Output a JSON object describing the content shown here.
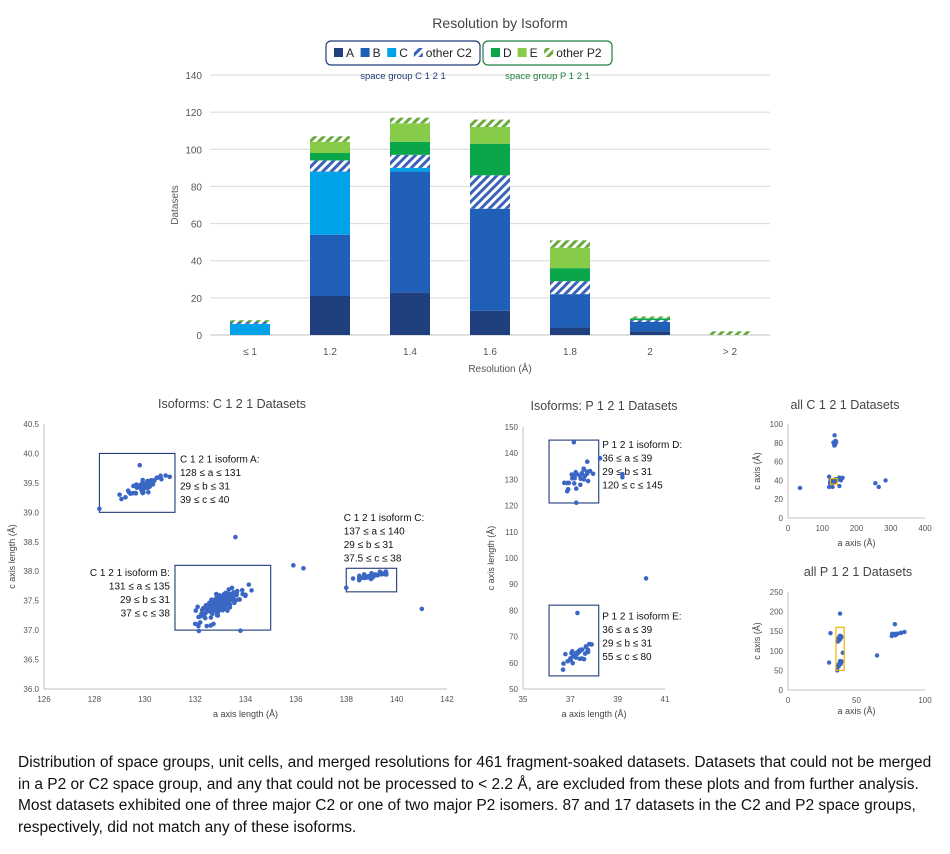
{
  "caption": "Distribution of space groups, unit cells, and merged resolutions for 461 fragment-soaked datasets. Datasets that could not be merged in a P2 or C2 space group, and any that could not be processed to < 2.2 Å, are excluded from these plots and from further analysis. Most datasets exhibited one of three major C2 or one of two major P2 isomers. 87 and 17 datasets in the C2 and P2 space groups, respectively, did not match any of these isoforms.",
  "colors": {
    "A": "#203f7f",
    "B": "#1f5fb8",
    "C": "#00a2e8",
    "otherC2": "#3a63b8",
    "D": "#0aa64a",
    "E": "#86cc48",
    "otherP2": "#6aaa3c",
    "point": "#3a66c4",
    "boxC2": "#1f3a78",
    "boxP2": "#208040",
    "highlight": "#f0b400",
    "grid": "#d9d9d9",
    "axis": "#bfbfbf"
  },
  "chart_data": [
    {
      "id": "histogram",
      "type": "bar",
      "stacked": true,
      "title": "Resolution by Isoform",
      "xlabel": "Resolution (Å)",
      "ylabel": "Datasets",
      "ylim": [
        0,
        140
      ],
      "yticks": [
        0,
        20,
        40,
        60,
        80,
        100,
        120,
        140
      ],
      "categories": [
        "≤ 1",
        "1.2",
        "1.4",
        "1.6",
        "1.8",
        "2",
        "> 2"
      ],
      "series": [
        {
          "key": "A",
          "name": "A",
          "pattern": false,
          "values": [
            0,
            21,
            23,
            13,
            4,
            2,
            0
          ]
        },
        {
          "key": "B",
          "name": "B",
          "pattern": false,
          "values": [
            0,
            33,
            65,
            55,
            18,
            5,
            0
          ]
        },
        {
          "key": "C",
          "name": "C",
          "pattern": false,
          "values": [
            6,
            34,
            2,
            0,
            0,
            0,
            0
          ]
        },
        {
          "key": "otherC2",
          "name": "other C2",
          "pattern": true,
          "values": [
            1,
            6,
            7,
            18,
            7,
            1,
            0
          ]
        },
        {
          "key": "D",
          "name": "D",
          "pattern": false,
          "values": [
            0,
            4,
            7,
            17,
            7,
            1,
            0
          ]
        },
        {
          "key": "E",
          "name": "E",
          "pattern": false,
          "values": [
            0,
            6,
            10,
            9,
            11,
            0,
            0
          ]
        },
        {
          "key": "otherP2",
          "name": "other P2",
          "pattern": true,
          "values": [
            1,
            3,
            3,
            4,
            4,
            1,
            2
          ]
        }
      ],
      "legend": {
        "placement": "top",
        "groups": [
          {
            "label": "space group C 1 2 1",
            "keys": [
              "A",
              "B",
              "C",
              "otherC2"
            ]
          },
          {
            "label": "space group P 1 2 1",
            "keys": [
              "D",
              "E",
              "otherP2"
            ]
          }
        ]
      }
    },
    {
      "id": "scatterC2",
      "type": "scatter",
      "title": "Isoforms: C 1 2 1 Datasets",
      "xlabel": "a axis length (Å)",
      "ylabel": "c axis length (Å)",
      "xlim": [
        126,
        142
      ],
      "ylim": [
        36.0,
        40.5
      ],
      "xticks": [
        126,
        128,
        130,
        132,
        134,
        136,
        138,
        140,
        142
      ],
      "yticks": [
        "36.0",
        "36.5",
        "37.0",
        "37.5",
        "38.0",
        "38.5",
        "39.0",
        "39.5",
        "40.0",
        "40.5"
      ],
      "clusters": [
        {
          "cx": 130.0,
          "cy": 39.45,
          "sx": 0.35,
          "sy": 0.12,
          "n": 60
        },
        {
          "cx": 133.0,
          "cy": 37.45,
          "sx": 0.45,
          "sy": 0.2,
          "n": 150
        },
        {
          "cx": 139.1,
          "cy": 37.93,
          "sx": 0.35,
          "sy": 0.05,
          "n": 30
        }
      ],
      "points": [
        [
          128.2,
          39.06
        ],
        [
          133.6,
          38.58
        ],
        [
          135.9,
          38.1
        ],
        [
          136.3,
          38.05
        ],
        [
          141.0,
          37.36
        ],
        [
          138.0,
          37.72
        ],
        [
          134.0,
          37.6
        ],
        [
          133.8,
          36.99
        ],
        [
          129.8,
          39.8
        ],
        [
          129.0,
          39.3
        ]
      ],
      "boxes": [
        {
          "x": [
            128.2,
            131.2
          ],
          "y": [
            39.0,
            40.0
          ],
          "lines": [
            "C 1 2 1 isoform A:",
            "128 ≤ a ≤ 131",
            "29 ≤ b ≤ 31",
            "39 ≤ c ≤ 40"
          ],
          "text_at": [
            131.4,
            39.85
          ],
          "align": "start"
        },
        {
          "x": [
            131.2,
            135.0
          ],
          "y": [
            37.0,
            38.1
          ],
          "lines": [
            "C 1 2 1 isoform B:",
            "131 ≤ a ≤ 135",
            "29 ≤ b ≤ 31",
            "37 ≤ c ≤ 38"
          ],
          "text_at": [
            131.0,
            37.92
          ],
          "align": "end"
        },
        {
          "x": [
            138.0,
            140.0
          ],
          "y": [
            37.65,
            38.05
          ],
          "lines": [
            "C 1 2 1 isoform C:",
            "137 ≤ a ≤ 140",
            "29 ≤ b ≤ 31",
            "37.5 ≤ c ≤ 38"
          ],
          "text_at": [
            137.9,
            38.85
          ],
          "align": "start"
        }
      ]
    },
    {
      "id": "scatterP2",
      "type": "scatter",
      "title": "Isoforms: P 1 2 1 Datasets",
      "xlabel": "a axis length (Å)",
      "ylabel": "c axis length (Å)",
      "xlim": [
        35,
        41
      ],
      "ylim": [
        50,
        150
      ],
      "xticks": [
        35,
        37,
        39,
        41
      ],
      "yticks": [
        50,
        60,
        70,
        80,
        90,
        100,
        110,
        120,
        130,
        140,
        150
      ],
      "clusters": [
        {
          "cx": 37.3,
          "cy": 130.5,
          "sx": 0.35,
          "sy": 4.5,
          "n": 28
        },
        {
          "cx": 37.2,
          "cy": 62,
          "sx": 0.35,
          "sy": 4.0,
          "n": 30
        }
      ],
      "points": [
        [
          37.15,
          144.2
        ],
        [
          37.25,
          121.1
        ],
        [
          37.3,
          79.0
        ],
        [
          37.9,
          67.0
        ],
        [
          40.2,
          92.2
        ],
        [
          39.2,
          130.8
        ],
        [
          39.2,
          132.0
        ]
      ],
      "boxes": [
        {
          "x": [
            36.1,
            38.2
          ],
          "y": [
            121,
            145
          ],
          "lines": [
            "P 1 2 1 isoform D:",
            "36 ≤ a ≤ 39",
            "29 ≤ b ≤ 31",
            "120 ≤ c ≤ 145"
          ],
          "text_at": [
            38.35,
            142
          ],
          "align": "start"
        },
        {
          "x": [
            36.1,
            38.2
          ],
          "y": [
            55,
            82
          ],
          "lines": [
            "P 1 2 1 isoform E:",
            "36 ≤ a ≤ 39",
            "29 ≤ b ≤ 31",
            "55 ≤ c ≤ 80"
          ],
          "text_at": [
            38.35,
            76.5
          ],
          "align": "start"
        }
      ]
    },
    {
      "id": "allC2",
      "type": "scatter",
      "title": "all C 1 2 1 Datasets",
      "xlabel": "a axis (Å)",
      "ylabel": "c axis (Å)",
      "xlim": [
        0,
        400
      ],
      "ylim": [
        0,
        100
      ],
      "xticks": [
        0,
        100,
        200,
        300,
        400
      ],
      "yticks": [
        0,
        20,
        40,
        60,
        80,
        100
      ],
      "clusters": [
        {
          "cx": 136,
          "cy": 79,
          "sx": 3,
          "sy": 3,
          "n": 14
        },
        {
          "cx": 138,
          "cy": 40,
          "sx": 10,
          "sy": 2,
          "n": 20
        }
      ],
      "points": [
        [
          35,
          32
        ],
        [
          120,
          33
        ],
        [
          130,
          33
        ],
        [
          150,
          34
        ],
        [
          255,
          37
        ],
        [
          265,
          33
        ],
        [
          285,
          40
        ],
        [
          136,
          88
        ],
        [
          120,
          44
        ]
      ],
      "highlight": {
        "x": [
          124,
          144
        ],
        "y": [
          36,
          42
        ]
      }
    },
    {
      "id": "allP2",
      "type": "scatter",
      "title": "all P 1 2 1 Datasets",
      "xlabel": "a axis (Å)",
      "ylabel": "c axis (Å)",
      "xlim": [
        0,
        100
      ],
      "ylim": [
        0,
        250
      ],
      "xticks": [
        0,
        50,
        100
      ],
      "yticks": [
        0,
        50,
        100,
        150,
        200,
        250
      ],
      "clusters": [
        {
          "cx": 37.5,
          "cy": 130,
          "sx": 0.8,
          "sy": 6,
          "n": 22
        },
        {
          "cx": 37.5,
          "cy": 65,
          "sx": 0.8,
          "sy": 6,
          "n": 22
        },
        {
          "cx": 78,
          "cy": 142,
          "sx": 2,
          "sy": 3,
          "n": 10
        }
      ],
      "points": [
        [
          30,
          70
        ],
        [
          31,
          145
        ],
        [
          38,
          195
        ],
        [
          65,
          88
        ],
        [
          85,
          148
        ],
        [
          78,
          168
        ],
        [
          40,
          95
        ],
        [
          36,
          50
        ]
      ],
      "highlight": {
        "x": [
          35,
          41
        ],
        "y": [
          50,
          160
        ]
      }
    }
  ]
}
